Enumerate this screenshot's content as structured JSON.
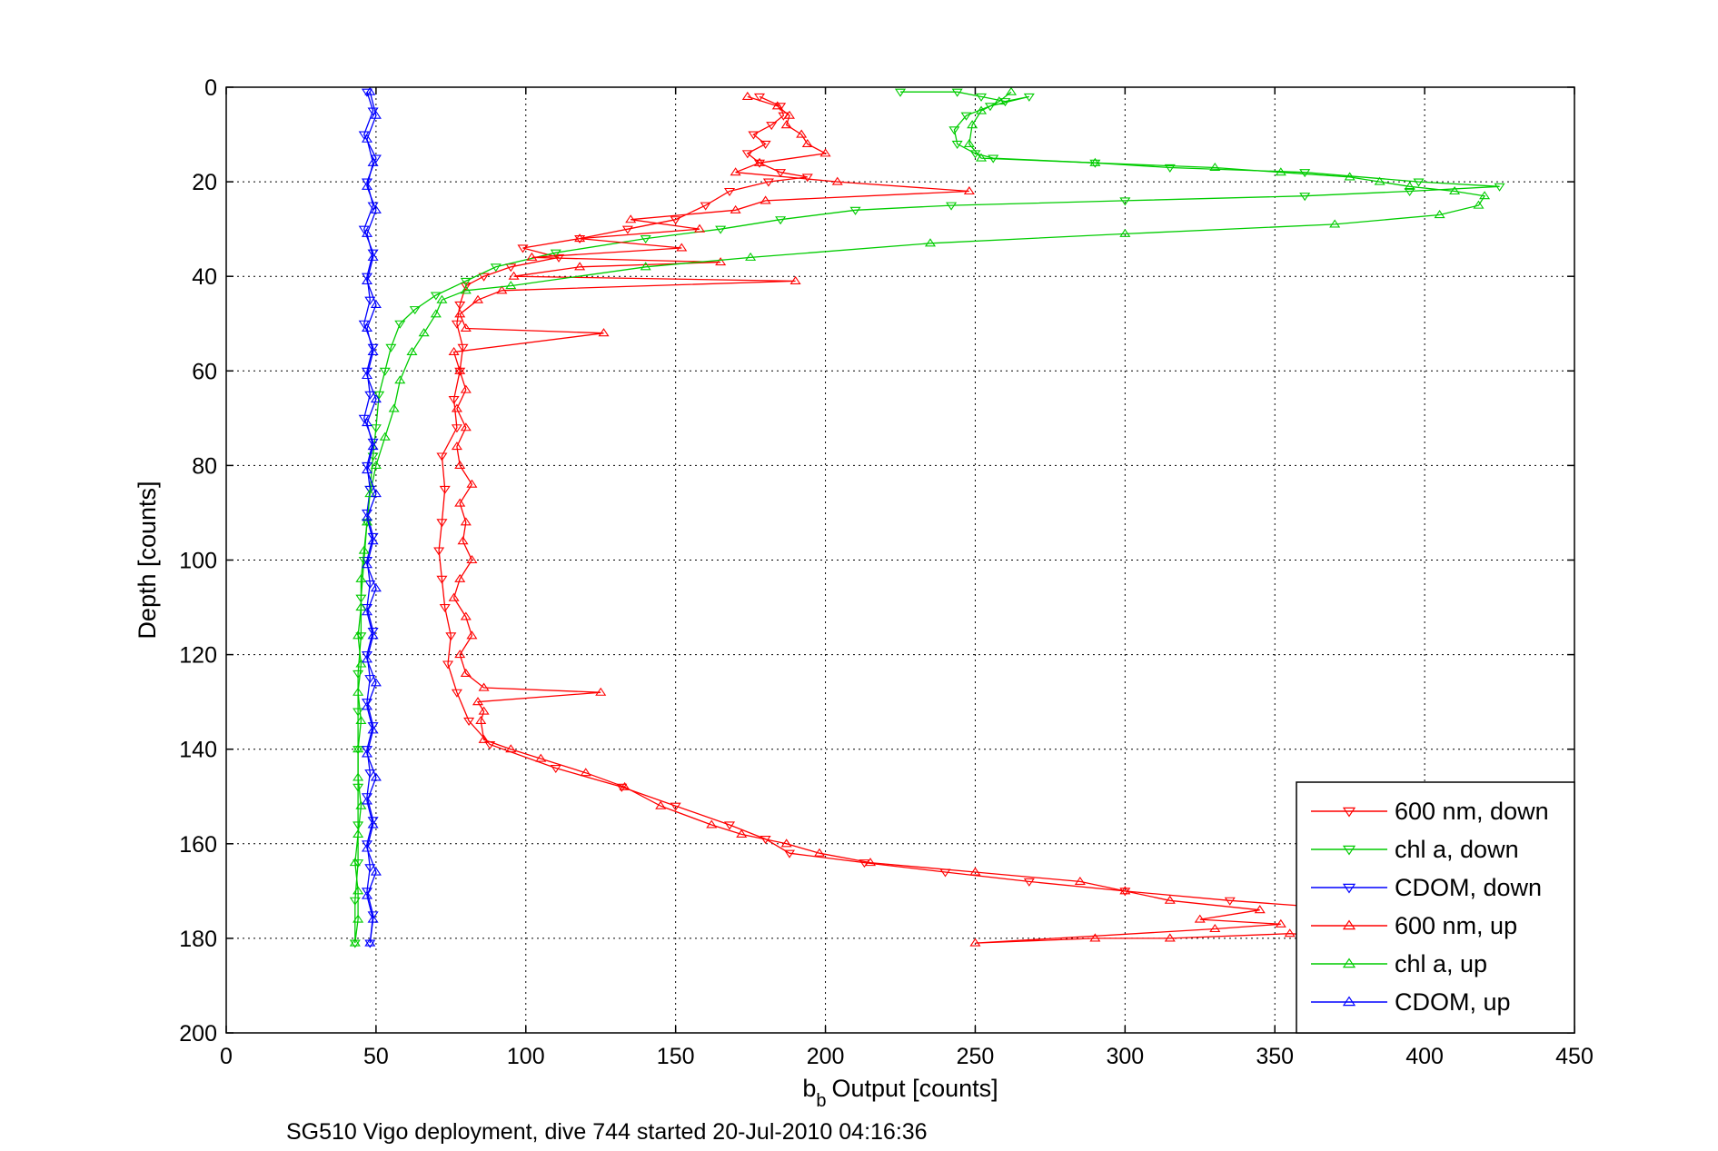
{
  "chart_data": {
    "type": "line",
    "xlabel": "Output [counts]",
    "xlabel_symbol": "b",
    "xlabel_subscript": "b",
    "ylabel": "Depth [counts]",
    "caption": "SG510 Vigo deployment, dive 744 started 20-Jul-2010 04:16:36",
    "xlim": [
      0,
      450
    ],
    "ylim": [
      0,
      200
    ],
    "y_reversed": true,
    "grid": true,
    "x_ticks": [
      "0",
      "50",
      "100",
      "150",
      "200",
      "250",
      "300",
      "350",
      "400",
      "450"
    ],
    "y_ticks": [
      "0",
      "20",
      "40",
      "60",
      "80",
      "100",
      "120",
      "140",
      "160",
      "180",
      "200"
    ],
    "legend_position": "bottom-right",
    "series": [
      {
        "name": "600 nm, down",
        "color": "#ff0000",
        "marker": "triangle-down",
        "points": [
          [
            178,
            2
          ],
          [
            185,
            4
          ],
          [
            186,
            6
          ],
          [
            182,
            8
          ],
          [
            176,
            10
          ],
          [
            180,
            12
          ],
          [
            174,
            14
          ],
          [
            178,
            16
          ],
          [
            185,
            18
          ],
          [
            194,
            19
          ],
          [
            181,
            20
          ],
          [
            168,
            22
          ],
          [
            160,
            25
          ],
          [
            150,
            28
          ],
          [
            134,
            30
          ],
          [
            118,
            32
          ],
          [
            99,
            34
          ],
          [
            111,
            36
          ],
          [
            95,
            38
          ],
          [
            86,
            40
          ],
          [
            80,
            42
          ],
          [
            78,
            46
          ],
          [
            77,
            50
          ],
          [
            79,
            55
          ],
          [
            78,
            60
          ],
          [
            76,
            66
          ],
          [
            77,
            72
          ],
          [
            72,
            78
          ],
          [
            73,
            85
          ],
          [
            72,
            92
          ],
          [
            71,
            98
          ],
          [
            72,
            104
          ],
          [
            73,
            110
          ],
          [
            75,
            116
          ],
          [
            74,
            122
          ],
          [
            77,
            128
          ],
          [
            81,
            134
          ],
          [
            88,
            139
          ],
          [
            110,
            144
          ],
          [
            132,
            148
          ],
          [
            150,
            152
          ],
          [
            168,
            156
          ],
          [
            180,
            159
          ],
          [
            188,
            162
          ],
          [
            213,
            164
          ],
          [
            240,
            166
          ],
          [
            268,
            168
          ],
          [
            300,
            170
          ],
          [
            335,
            172
          ],
          [
            378,
            174
          ],
          [
            400,
            175
          ]
        ]
      },
      {
        "name": "chl a, down",
        "color": "#00cc00",
        "marker": "triangle-down",
        "points": [
          [
            225,
            1
          ],
          [
            244,
            1
          ],
          [
            252,
            2
          ],
          [
            260,
            3
          ],
          [
            268,
            2
          ],
          [
            255,
            4
          ],
          [
            247,
            6
          ],
          [
            243,
            9
          ],
          [
            244,
            12
          ],
          [
            250,
            14
          ],
          [
            256,
            15
          ],
          [
            290,
            16
          ],
          [
            315,
            17
          ],
          [
            360,
            18
          ],
          [
            398,
            20
          ],
          [
            425,
            21
          ],
          [
            395,
            22
          ],
          [
            360,
            23
          ],
          [
            300,
            24
          ],
          [
            242,
            25
          ],
          [
            210,
            26
          ],
          [
            185,
            28
          ],
          [
            165,
            30
          ],
          [
            140,
            32
          ],
          [
            110,
            35
          ],
          [
            90,
            38
          ],
          [
            80,
            41
          ],
          [
            70,
            44
          ],
          [
            63,
            47
          ],
          [
            58,
            50
          ],
          [
            55,
            55
          ],
          [
            53,
            60
          ],
          [
            51,
            65
          ],
          [
            50,
            72
          ],
          [
            49,
            78
          ],
          [
            48,
            85
          ],
          [
            47,
            92
          ],
          [
            46,
            100
          ],
          [
            45,
            108
          ],
          [
            45,
            116
          ],
          [
            44,
            124
          ],
          [
            44,
            132
          ],
          [
            44,
            140
          ],
          [
            44,
            148
          ],
          [
            44,
            156
          ],
          [
            44,
            164
          ],
          [
            43,
            172
          ],
          [
            43,
            181
          ]
        ]
      },
      {
        "name": "CDOM, down",
        "color": "#0000ff",
        "marker": "triangle-down",
        "points": [
          [
            47,
            1
          ],
          [
            49,
            5
          ],
          [
            46,
            10
          ],
          [
            50,
            15
          ],
          [
            47,
            20
          ],
          [
            49,
            25
          ],
          [
            46,
            30
          ],
          [
            49,
            35
          ],
          [
            47,
            40
          ],
          [
            48,
            45
          ],
          [
            46,
            50
          ],
          [
            49,
            55
          ],
          [
            47,
            60
          ],
          [
            48,
            65
          ],
          [
            46,
            70
          ],
          [
            49,
            75
          ],
          [
            47,
            80
          ],
          [
            48,
            85
          ],
          [
            47,
            90
          ],
          [
            49,
            95
          ],
          [
            47,
            100
          ],
          [
            48,
            105
          ],
          [
            47,
            110
          ],
          [
            49,
            115
          ],
          [
            47,
            120
          ],
          [
            48,
            125
          ],
          [
            47,
            130
          ],
          [
            49,
            135
          ],
          [
            47,
            140
          ],
          [
            48,
            145
          ],
          [
            47,
            150
          ],
          [
            49,
            155
          ],
          [
            47,
            160
          ],
          [
            48,
            165
          ],
          [
            47,
            170
          ],
          [
            49,
            175
          ],
          [
            48,
            181
          ]
        ]
      },
      {
        "name": "600 nm, up",
        "color": "#ff0000",
        "marker": "triangle-up",
        "points": [
          [
            405,
            181
          ],
          [
            380,
            180
          ],
          [
            355,
            179
          ],
          [
            315,
            180
          ],
          [
            290,
            180
          ],
          [
            250,
            181
          ],
          [
            330,
            178
          ],
          [
            352,
            177
          ],
          [
            325,
            176
          ],
          [
            345,
            174
          ],
          [
            315,
            172
          ],
          [
            300,
            170
          ],
          [
            285,
            168
          ],
          [
            250,
            166
          ],
          [
            215,
            164
          ],
          [
            198,
            162
          ],
          [
            187,
            160
          ],
          [
            172,
            158
          ],
          [
            162,
            156
          ],
          [
            145,
            152
          ],
          [
            133,
            148
          ],
          [
            120,
            145
          ],
          [
            105,
            142
          ],
          [
            95,
            140
          ],
          [
            86,
            138
          ],
          [
            85,
            134
          ],
          [
            86,
            132
          ],
          [
            84,
            130
          ],
          [
            125,
            128
          ],
          [
            86,
            127
          ],
          [
            80,
            124
          ],
          [
            78,
            120
          ],
          [
            82,
            116
          ],
          [
            80,
            112
          ],
          [
            76,
            108
          ],
          [
            78,
            104
          ],
          [
            82,
            100
          ],
          [
            79,
            96
          ],
          [
            80,
            92
          ],
          [
            78,
            88
          ],
          [
            82,
            84
          ],
          [
            78,
            80
          ],
          [
            77,
            76
          ],
          [
            80,
            72
          ],
          [
            77,
            68
          ],
          [
            80,
            64
          ],
          [
            78,
            60
          ],
          [
            76,
            56
          ],
          [
            126,
            52
          ],
          [
            80,
            51
          ],
          [
            78,
            48
          ],
          [
            84,
            45
          ],
          [
            92,
            43
          ],
          [
            190,
            41
          ],
          [
            96,
            40
          ],
          [
            118,
            38
          ],
          [
            165,
            37
          ],
          [
            102,
            36
          ],
          [
            152,
            34
          ],
          [
            118,
            32
          ],
          [
            158,
            30
          ],
          [
            135,
            28
          ],
          [
            170,
            26
          ],
          [
            180,
            24
          ],
          [
            248,
            22
          ],
          [
            204,
            20
          ],
          [
            170,
            18
          ],
          [
            178,
            16
          ],
          [
            200,
            14
          ],
          [
            194,
            12
          ],
          [
            192,
            10
          ],
          [
            187,
            8
          ],
          [
            188,
            6
          ],
          [
            184,
            4
          ],
          [
            174,
            2
          ]
        ]
      },
      {
        "name": "chl a, up",
        "color": "#00cc00",
        "marker": "triangle-up",
        "points": [
          [
            43,
            181
          ],
          [
            44,
            176
          ],
          [
            44,
            170
          ],
          [
            43,
            164
          ],
          [
            44,
            158
          ],
          [
            45,
            152
          ],
          [
            44,
            146
          ],
          [
            44,
            140
          ],
          [
            45,
            134
          ],
          [
            44,
            128
          ],
          [
            45,
            122
          ],
          [
            44,
            116
          ],
          [
            45,
            110
          ],
          [
            45,
            104
          ],
          [
            46,
            98
          ],
          [
            47,
            92
          ],
          [
            48,
            86
          ],
          [
            50,
            80
          ],
          [
            53,
            74
          ],
          [
            56,
            68
          ],
          [
            58,
            62
          ],
          [
            62,
            56
          ],
          [
            66,
            52
          ],
          [
            70,
            48
          ],
          [
            72,
            45
          ],
          [
            80,
            43
          ],
          [
            95,
            42
          ],
          [
            140,
            38
          ],
          [
            175,
            36
          ],
          [
            235,
            33
          ],
          [
            300,
            31
          ],
          [
            370,
            29
          ],
          [
            405,
            27
          ],
          [
            418,
            25
          ],
          [
            420,
            23
          ],
          [
            410,
            22
          ],
          [
            395,
            21
          ],
          [
            385,
            20
          ],
          [
            375,
            19
          ],
          [
            352,
            18
          ],
          [
            330,
            17
          ],
          [
            290,
            16
          ],
          [
            252,
            15
          ],
          [
            248,
            12
          ],
          [
            249,
            8
          ],
          [
            252,
            5
          ],
          [
            258,
            3
          ],
          [
            262,
            1
          ]
        ]
      },
      {
        "name": "CDOM, up",
        "color": "#0000ff",
        "marker": "triangle-up",
        "points": [
          [
            48,
            181
          ],
          [
            49,
            176
          ],
          [
            47,
            171
          ],
          [
            50,
            166
          ],
          [
            47,
            161
          ],
          [
            49,
            156
          ],
          [
            47,
            151
          ],
          [
            50,
            146
          ],
          [
            47,
            141
          ],
          [
            49,
            136
          ],
          [
            47,
            131
          ],
          [
            50,
            126
          ],
          [
            47,
            121
          ],
          [
            49,
            116
          ],
          [
            47,
            111
          ],
          [
            50,
            106
          ],
          [
            47,
            101
          ],
          [
            49,
            96
          ],
          [
            47,
            91
          ],
          [
            50,
            86
          ],
          [
            47,
            81
          ],
          [
            49,
            76
          ],
          [
            47,
            71
          ],
          [
            50,
            66
          ],
          [
            47,
            61
          ],
          [
            49,
            56
          ],
          [
            47,
            51
          ],
          [
            50,
            46
          ],
          [
            47,
            41
          ],
          [
            49,
            36
          ],
          [
            47,
            31
          ],
          [
            50,
            26
          ],
          [
            47,
            21
          ],
          [
            49,
            16
          ],
          [
            47,
            11
          ],
          [
            50,
            6
          ],
          [
            48,
            1
          ]
        ]
      }
    ]
  }
}
